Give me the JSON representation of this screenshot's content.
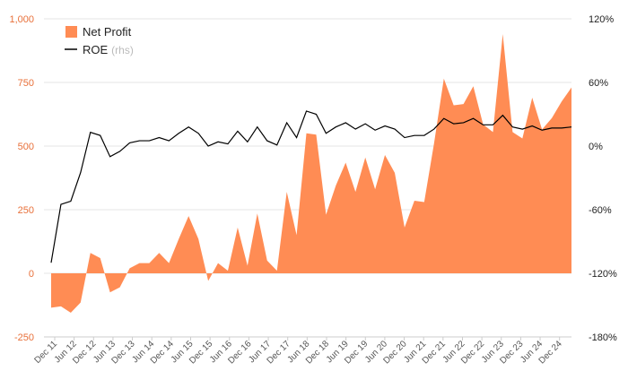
{
  "chart_data": {
    "type": "area",
    "title": "",
    "colors": {
      "area": "#ff8c54",
      "line": "#000000",
      "grid": "#e6e6e6",
      "left_axis_text": "#e8703a",
      "right_axis_text": "#222222"
    },
    "legend": {
      "position": "top-left",
      "area_label": "Net Profit",
      "line_label": "ROE",
      "line_note": "(rhs)"
    },
    "y_left": {
      "min": -250,
      "max": 1000,
      "ticks": [
        -250,
        0,
        250,
        500,
        750,
        1000
      ],
      "tick_labels": [
        "-250",
        "0",
        "250",
        "500",
        "750",
        "1,000"
      ]
    },
    "y_right": {
      "min": -180,
      "max": 120,
      "ticks": [
        -180,
        -120,
        -60,
        0,
        60,
        120
      ],
      "tick_labels": [
        "-180%",
        "-120%",
        "-60%",
        "0%",
        "60%",
        "120%"
      ]
    },
    "x_tick_labels": [
      "Dec 11",
      "Jun 12",
      "Dec 12",
      "Jun 13",
      "Dec 13",
      "Jun 14",
      "Dec 14",
      "Jun 15",
      "Dec 15",
      "Jun 16",
      "Dec 16",
      "Jun 17",
      "Dec 17",
      "Jun 18",
      "Dec 18",
      "Jun 19",
      "Dec 19",
      "Jun 20",
      "Dec 20",
      "Jun 21",
      "Dec 21",
      "Jun 22",
      "Dec 22",
      "Jun 23",
      "Dec 23",
      "Jun 24",
      "Dec 24"
    ],
    "series": [
      {
        "name": "Net Profit",
        "axis": "left",
        "type": "area",
        "values": [
          -135,
          -130,
          -155,
          -115,
          80,
          60,
          -75,
          -55,
          20,
          40,
          40,
          80,
          40,
          135,
          225,
          135,
          -30,
          40,
          10,
          180,
          30,
          235,
          50,
          10,
          320,
          150,
          550,
          545,
          230,
          345,
          435,
          320,
          455,
          330,
          465,
          395,
          180,
          285,
          280,
          510,
          765,
          660,
          665,
          735,
          585,
          555,
          940,
          555,
          530,
          690,
          565,
          610,
          675,
          730
        ]
      },
      {
        "name": "ROE",
        "axis": "right",
        "type": "line",
        "values": [
          -110,
          -55,
          -52,
          -25,
          13,
          10,
          -10,
          -5,
          3,
          5,
          5,
          8,
          5,
          12,
          18,
          12,
          0,
          4,
          2,
          14,
          4,
          18,
          5,
          1,
          22,
          8,
          33,
          30,
          12,
          18,
          22,
          16,
          21,
          15,
          19,
          16,
          8,
          10,
          10,
          16,
          26,
          21,
          22,
          26,
          20,
          20,
          29,
          18,
          16,
          19,
          15,
          17,
          17,
          18
        ]
      }
    ]
  }
}
